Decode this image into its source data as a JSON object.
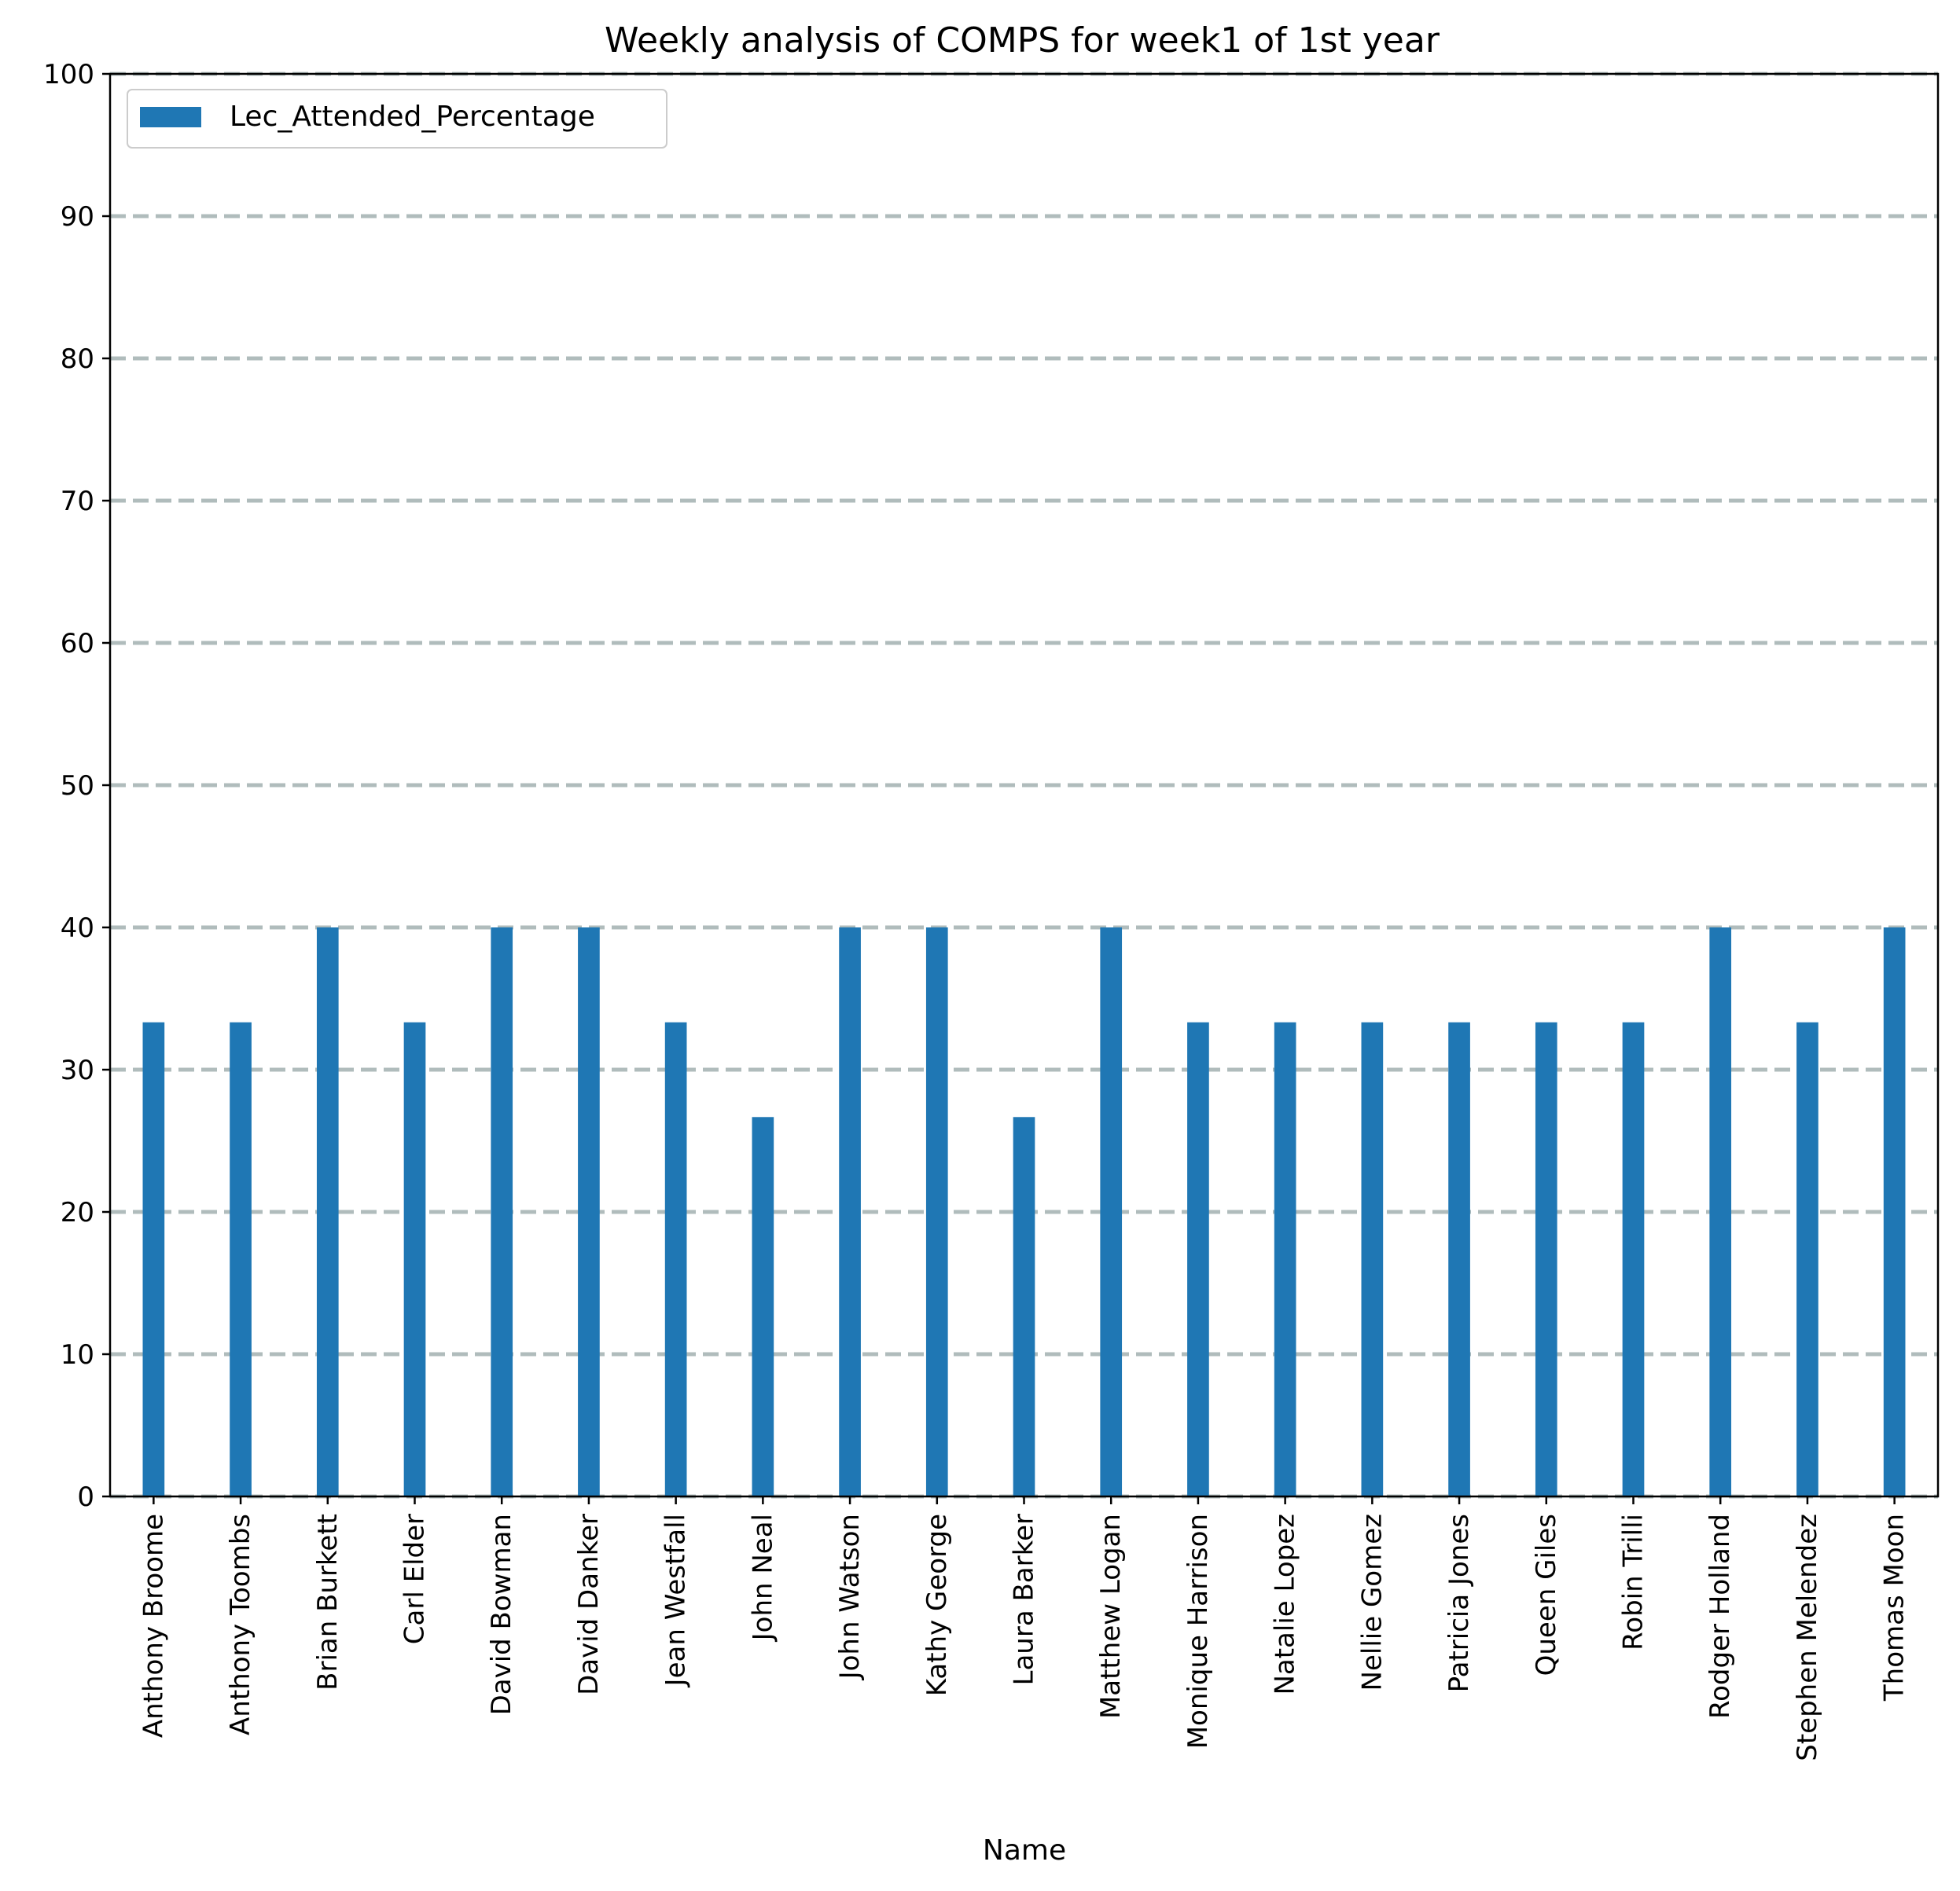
{
  "chart_data": {
    "type": "bar",
    "title": "Weekly analysis of COMPS for week1 of 1st year",
    "xlabel": "Name",
    "ylabel": "",
    "ylim": [
      0,
      100
    ],
    "yticks": [
      0,
      10,
      20,
      30,
      40,
      50,
      60,
      70,
      80,
      90,
      100
    ],
    "grid": "y-dashed",
    "legend_position": "top-left",
    "categories": [
      "Anthony Broome",
      "Anthony Toombs",
      "Brian Burkett",
      "Carl Elder",
      "David Bowman",
      "David Danker",
      "Jean Westfall",
      "John Neal",
      "John Watson",
      "Kathy George",
      "Laura Barker",
      "Matthew Logan",
      "Monique Harrison",
      "Natalie Lopez",
      "Nellie Gomez",
      "Patricia Jones",
      "Queen Giles",
      "Robin Trilli",
      "Rodger Holland",
      "Stephen Melendez",
      "Thomas Moon"
    ],
    "series": [
      {
        "name": "Lec_Attended_Percentage",
        "color": "#1f77b4",
        "values": [
          33.33,
          33.33,
          40,
          33.33,
          40,
          40,
          33.33,
          26.67,
          40,
          40,
          26.67,
          40,
          33.33,
          33.33,
          33.33,
          33.33,
          33.33,
          33.33,
          40,
          33.33,
          40
        ]
      }
    ],
    "grid_color": "#b0bcbc"
  }
}
